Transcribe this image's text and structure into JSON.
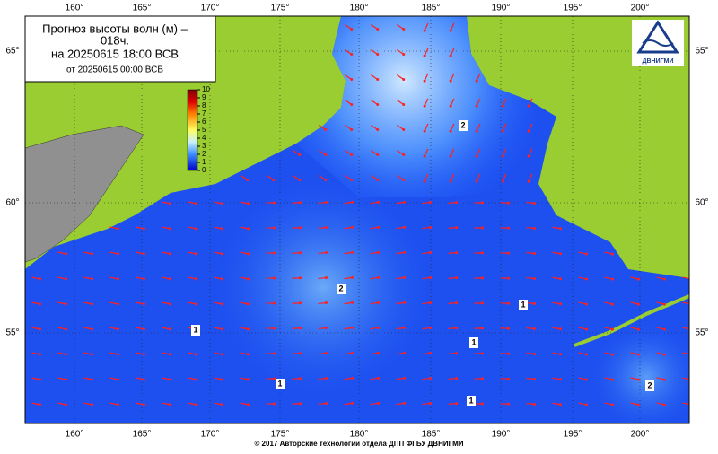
{
  "header": {
    "title_line1": "Прогноз высоты волн (м) –",
    "title_line2": "018ч.",
    "title_line3": "на 20250615 18:00 ВСВ",
    "title_line4": "от 20250615 00:00 ВСВ"
  },
  "logo": {
    "text": "ДВНИГМИ"
  },
  "longitudes": [
    "160°",
    "165°",
    "170°",
    "175°",
    "180°",
    "185°",
    "190°",
    "195°",
    "200°"
  ],
  "latitudes": [
    "65°",
    "60°",
    "55°"
  ],
  "colorbar": {
    "ticks": [
      0,
      1,
      2,
      3,
      4,
      5,
      6,
      7,
      8,
      9,
      10
    ]
  },
  "contour_labels": [
    "2",
    "1",
    "1",
    "1",
    "1",
    "1",
    "2",
    "2"
  ],
  "footer": "© 2017 Авторские технологии отдела ДПП ФГБУ ДВНИГМИ"
}
